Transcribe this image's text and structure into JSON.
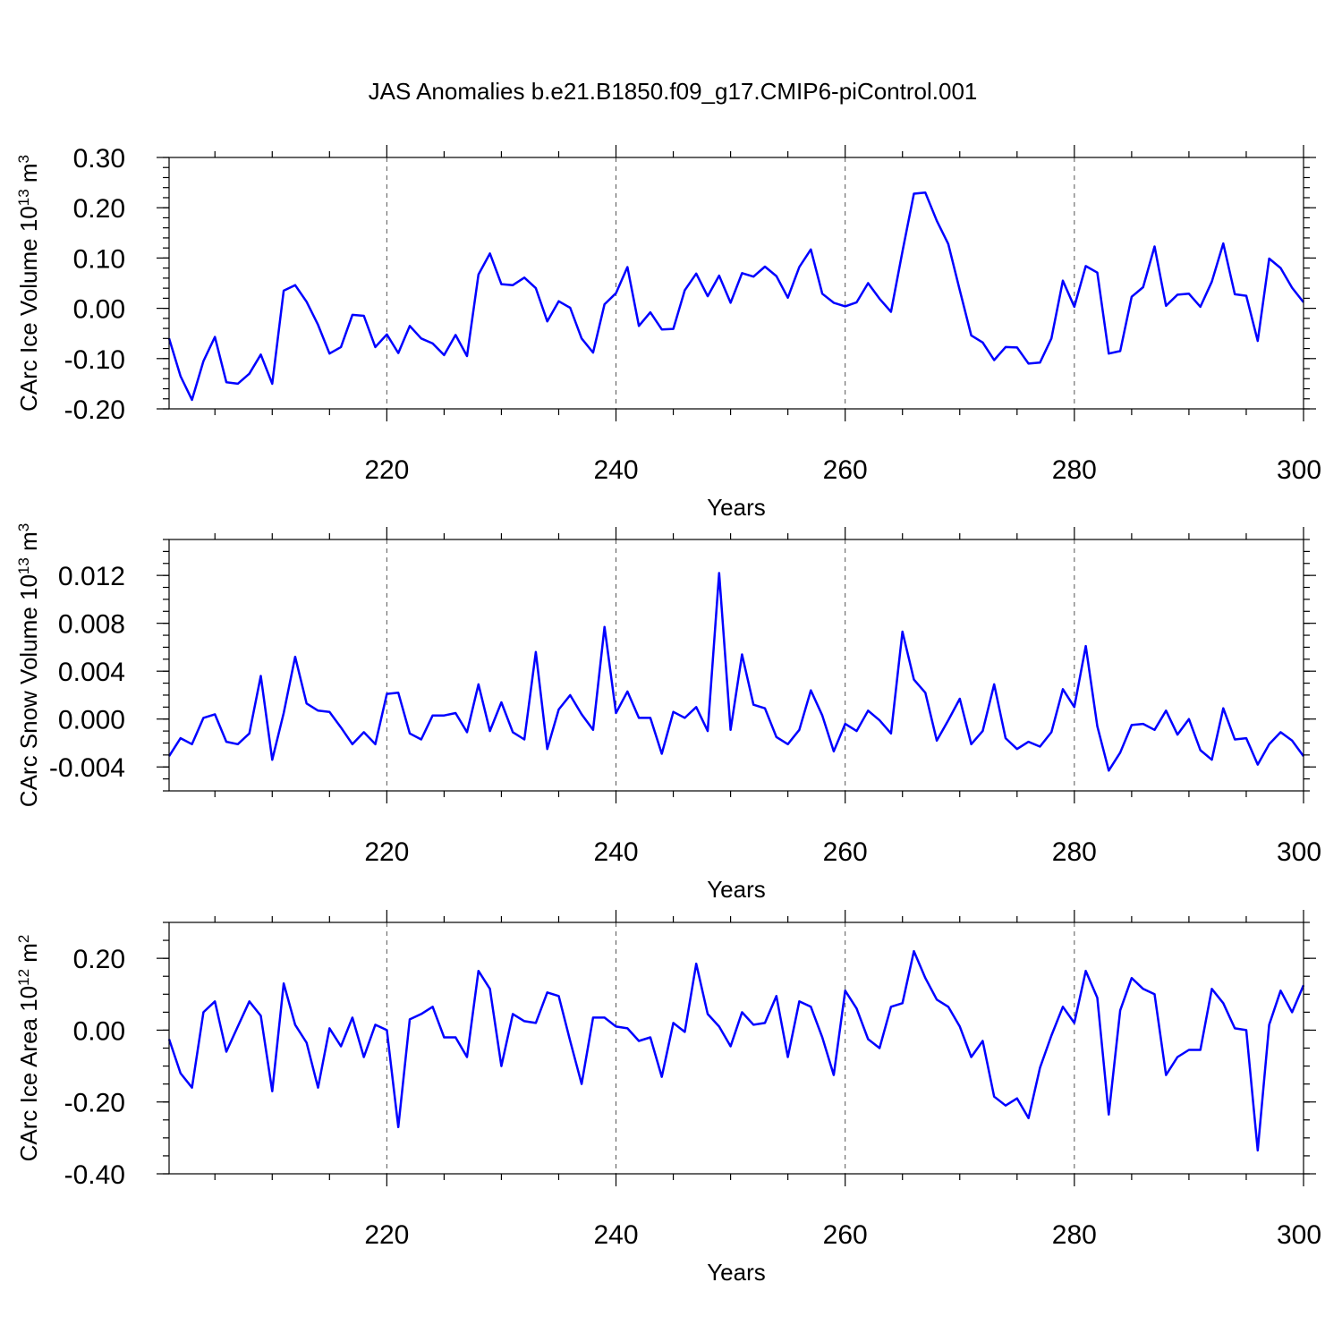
{
  "figure_title": "JAS Anomalies b.e21.B1850.f09_g17.CMIP6-piControl.001",
  "chart_data": [
    {
      "type": "line",
      "title": "JAS Anomalies b.e21.B1850.f09_g17.CMIP6-piControl.001",
      "xlabel": "Years",
      "ylabel": "CArc Ice Volume 10",
      "ylabel_exponent": "13",
      "ylabel_unit": " m",
      "ylabel_unit_exponent": "3",
      "xlim": [
        201,
        300
      ],
      "ylim": [
        -0.2,
        0.3
      ],
      "xticks": [
        220,
        240,
        260,
        280,
        300
      ],
      "xtick_labels": [
        "220",
        "240",
        "260",
        "280",
        "300"
      ],
      "yticks": [
        -0.2,
        -0.1,
        0.0,
        0.1,
        0.2,
        0.3
      ],
      "ytick_labels": [
        "-0.20",
        "-0.10",
        "0.00",
        "0.10",
        "0.20",
        "0.30"
      ],
      "ytick_minor_step": 0.02,
      "grid_x": true,
      "color": "#0000ff",
      "x_start": 201,
      "values": [
        -0.06,
        -0.135,
        -0.182,
        -0.105,
        -0.057,
        -0.147,
        -0.15,
        -0.13,
        -0.092,
        -0.15,
        0.035,
        0.046,
        0.013,
        -0.033,
        -0.09,
        -0.077,
        -0.013,
        -0.015,
        -0.077,
        -0.052,
        -0.089,
        -0.035,
        -0.06,
        -0.07,
        -0.093,
        -0.053,
        -0.095,
        0.067,
        0.109,
        0.048,
        0.046,
        0.061,
        0.04,
        -0.026,
        0.014,
        0.001,
        -0.06,
        -0.088,
        0.008,
        0.03,
        0.082,
        -0.035,
        -0.008,
        -0.042,
        -0.041,
        0.036,
        0.069,
        0.024,
        0.065,
        0.011,
        0.07,
        0.063,
        0.083,
        0.064,
        0.021,
        0.082,
        0.117,
        0.029,
        0.011,
        0.004,
        0.012,
        0.05,
        0.019,
        -0.007,
        0.113,
        0.228,
        0.23,
        0.174,
        0.128,
        0.036,
        -0.054,
        -0.068,
        -0.103,
        -0.077,
        -0.078,
        -0.11,
        -0.108,
        -0.06,
        0.055,
        0.003,
        0.084,
        0.071,
        -0.09,
        -0.085,
        0.023,
        0.042,
        0.123,
        0.005,
        0.027,
        0.029,
        0.003,
        0.053,
        0.129,
        0.028,
        0.025,
        -0.065,
        0.099,
        0.08,
        0.041,
        0.012
      ]
    },
    {
      "type": "line",
      "xlabel": "Years",
      "ylabel": "CArc Snow Volume 10",
      "ylabel_exponent": "13",
      "ylabel_unit": " m",
      "ylabel_unit_exponent": "3",
      "xlim": [
        201,
        300
      ],
      "ylim": [
        -0.006,
        0.015
      ],
      "xticks": [
        220,
        240,
        260,
        280,
        300
      ],
      "xtick_labels": [
        "220",
        "240",
        "260",
        "280",
        "300"
      ],
      "yticks": [
        -0.004,
        0.0,
        0.004,
        0.008,
        0.012
      ],
      "ytick_labels": [
        "-0.004",
        "0.000",
        "0.004",
        "0.008",
        "0.012"
      ],
      "ytick_minor_step": 0.001,
      "grid_x": true,
      "color": "#0000ff",
      "x_start": 201,
      "values": [
        -0.0031,
        -0.0016,
        -0.0021,
        0.0001,
        0.0004,
        -0.0019,
        -0.0021,
        -0.0012,
        0.0036,
        -0.0034,
        0.0005,
        0.0052,
        0.0013,
        0.0007,
        0.0006,
        -0.0007,
        -0.0021,
        -0.0011,
        -0.0021,
        0.0021,
        0.0022,
        -0.0012,
        -0.0017,
        0.0003,
        0.0003,
        0.0005,
        -0.0011,
        0.0029,
        -0.001,
        0.0014,
        -0.0011,
        -0.0017,
        0.0056,
        -0.0025,
        0.0008,
        0.002,
        0.0004,
        -0.0009,
        0.0077,
        0.0005,
        0.0023,
        0.0001,
        0.0001,
        -0.0029,
        0.0006,
        0.0001,
        0.001,
        -0.001,
        0.0122,
        -0.0009,
        0.0054,
        0.0012,
        0.0009,
        -0.0015,
        -0.0021,
        -0.0009,
        0.0024,
        0.0003,
        -0.0027,
        -0.0004,
        -0.001,
        0.0007,
        -0.0001,
        -0.0012,
        0.0073,
        0.0033,
        0.0022,
        -0.0018,
        -0.0001,
        0.0017,
        -0.0021,
        -0.001,
        0.0029,
        -0.0016,
        -0.0025,
        -0.0019,
        -0.0023,
        -0.0011,
        0.0025,
        0.001,
        0.0061,
        -0.0006,
        -0.0043,
        -0.0028,
        -0.0005,
        -0.0004,
        -0.0009,
        0.0007,
        -0.0013,
        0.0,
        -0.0026,
        -0.0034,
        0.0009,
        -0.0017,
        -0.0016,
        -0.0038,
        -0.0021,
        -0.0011,
        -0.0018,
        -0.0031
      ]
    },
    {
      "type": "line",
      "xlabel": "Years",
      "ylabel": "CArc Ice Area 10",
      "ylabel_exponent": "12",
      "ylabel_unit": " m",
      "ylabel_unit_exponent": "2",
      "xlim": [
        201,
        300
      ],
      "ylim": [
        -0.4,
        0.3
      ],
      "xticks": [
        220,
        240,
        260,
        280,
        300
      ],
      "xtick_labels": [
        "220",
        "240",
        "260",
        "280",
        "300"
      ],
      "yticks": [
        -0.4,
        -0.2,
        0.0,
        0.2
      ],
      "ytick_labels": [
        "-0.40",
        "-0.20",
        "0.00",
        "0.20"
      ],
      "ytick_minor_step": 0.05,
      "grid_x": true,
      "color": "#0000ff",
      "x_start": 201,
      "values": [
        -0.025,
        -0.12,
        -0.16,
        0.05,
        0.08,
        -0.06,
        0.01,
        0.08,
        0.04,
        -0.17,
        0.13,
        0.015,
        -0.035,
        -0.16,
        0.005,
        -0.045,
        0.035,
        -0.075,
        0.015,
        0.0,
        -0.27,
        0.03,
        0.045,
        0.065,
        -0.02,
        -0.02,
        -0.075,
        0.165,
        0.115,
        -0.1,
        0.045,
        0.025,
        0.02,
        0.105,
        0.095,
        -0.03,
        -0.15,
        0.035,
        0.035,
        0.01,
        0.005,
        -0.03,
        -0.02,
        -0.13,
        0.02,
        -0.005,
        0.185,
        0.045,
        0.01,
        -0.045,
        0.05,
        0.015,
        0.02,
        0.095,
        -0.075,
        0.08,
        0.065,
        -0.02,
        -0.125,
        0.11,
        0.06,
        -0.025,
        -0.05,
        0.065,
        0.075,
        0.22,
        0.145,
        0.085,
        0.065,
        0.01,
        -0.075,
        -0.03,
        -0.185,
        -0.21,
        -0.19,
        -0.245,
        -0.105,
        -0.015,
        0.065,
        0.02,
        0.165,
        0.09,
        -0.235,
        0.055,
        0.145,
        0.115,
        0.1,
        -0.125,
        -0.075,
        -0.055,
        -0.055,
        0.115,
        0.075,
        0.005,
        0.0,
        -0.335,
        0.015,
        0.11,
        0.05,
        0.125
      ]
    }
  ]
}
